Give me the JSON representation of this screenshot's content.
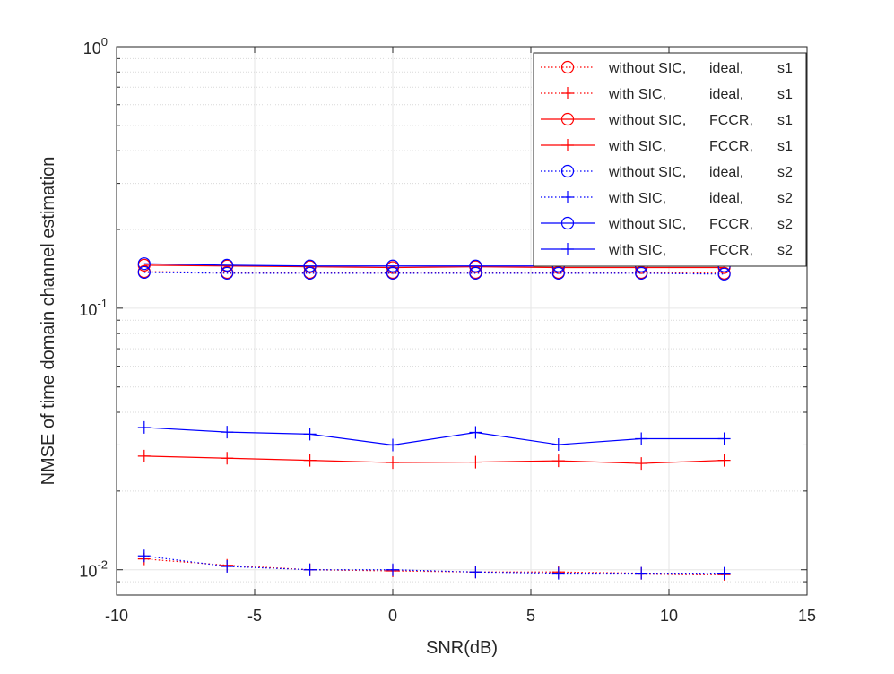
{
  "chart_data": {
    "type": "line",
    "title": "",
    "xlabel": "SNR(dB)",
    "ylabel": "NMSE of time domain channel estimation",
    "xlim": [
      -10,
      15
    ],
    "ylim": [
      0.008,
      1
    ],
    "yscale": "log",
    "grid": true,
    "legend_position": "top-right",
    "x_ticks": [
      {
        "value": -10,
        "label": "-10"
      },
      {
        "value": -5,
        "label": "-5"
      },
      {
        "value": 0,
        "label": "0"
      },
      {
        "value": 5,
        "label": "5"
      },
      {
        "value": 10,
        "label": "10"
      },
      {
        "value": 15,
        "label": "15"
      }
    ],
    "y_ticks": [
      {
        "value": 0.01,
        "base": "10",
        "exp": "-2"
      },
      {
        "value": 0.1,
        "base": "10",
        "exp": "-1"
      },
      {
        "value": 1,
        "base": "10",
        "exp": "0"
      }
    ],
    "x": [
      -9,
      -6,
      -3,
      0,
      3,
      6,
      9,
      12
    ],
    "series": [
      {
        "name": "without SIC, ideal,   s1",
        "legend": [
          "without SIC,",
          "ideal,",
          "s1"
        ],
        "color": "#ff0000",
        "line": "dotted",
        "marker": "circle",
        "values": [
          0.138,
          0.137,
          0.137,
          0.137,
          0.137,
          0.137,
          0.137,
          0.136
        ]
      },
      {
        "name": "with SIC,      ideal,   s1",
        "legend": [
          "with SIC,",
          "ideal,",
          "s1"
        ],
        "color": "#ff0000",
        "line": "dotted",
        "marker": "plus",
        "values": [
          0.011,
          0.0104,
          0.01,
          0.0099,
          0.0098,
          0.0098,
          0.0097,
          0.0096
        ]
      },
      {
        "name": "without SIC, FCCR, s1",
        "legend": [
          "without SIC,",
          "FCCR,",
          "s1"
        ],
        "color": "#ff0000",
        "line": "solid",
        "marker": "circle",
        "values": [
          0.146,
          0.145,
          0.144,
          0.143,
          0.144,
          0.143,
          0.143,
          0.143
        ]
      },
      {
        "name": "with SIC,      FCCR, s1",
        "legend": [
          "with SIC,",
          "FCCR,",
          "s1"
        ],
        "color": "#ff0000",
        "line": "solid",
        "marker": "plus",
        "values": [
          0.0272,
          0.0267,
          0.0262,
          0.0257,
          0.0258,
          0.0261,
          0.0255,
          0.0262
        ]
      },
      {
        "name": "without SIC, ideal,   s2",
        "legend": [
          "without SIC,",
          "ideal,",
          "s2"
        ],
        "color": "#0000ff",
        "line": "dotted",
        "marker": "circle",
        "values": [
          0.137,
          0.136,
          0.136,
          0.136,
          0.136,
          0.136,
          0.136,
          0.135
        ]
      },
      {
        "name": "with SIC,      ideal,   s2",
        "legend": [
          "with SIC,",
          "ideal,",
          "s2"
        ],
        "color": "#0000ff",
        "line": "dotted",
        "marker": "plus",
        "values": [
          0.0113,
          0.0103,
          0.01,
          0.01,
          0.0098,
          0.0097,
          0.0097,
          0.0097
        ]
      },
      {
        "name": "without SIC, FCCR, s2",
        "legend": [
          "without SIC,",
          "FCCR,",
          "s2"
        ],
        "color": "#0000ff",
        "line": "solid",
        "marker": "circle",
        "values": [
          0.148,
          0.146,
          0.145,
          0.145,
          0.145,
          0.145,
          0.145,
          0.145
        ]
      },
      {
        "name": "with SIC,      FCCR, s2",
        "legend": [
          "with SIC,",
          "FCCR,",
          "s2"
        ],
        "color": "#0000ff",
        "line": "solid",
        "marker": "plus",
        "values": [
          0.035,
          0.0336,
          0.033,
          0.03,
          0.0335,
          0.0301,
          0.0317,
          0.0317
        ]
      }
    ]
  }
}
